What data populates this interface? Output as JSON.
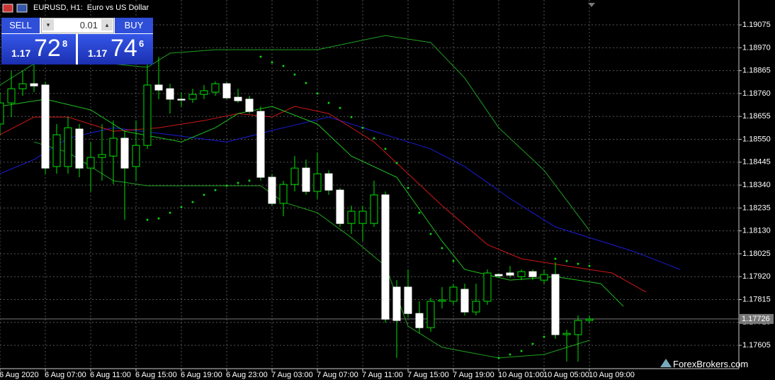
{
  "header": {
    "symbol_title": "EURUSD, H1:  Euro vs US Dollar"
  },
  "trade_panel": {
    "sell_label": "SELL",
    "buy_label": "BUY",
    "lot": "0.01",
    "sell_price": {
      "prefix": "1.17",
      "big": "72",
      "small": "8"
    },
    "buy_price": {
      "prefix": "1.17",
      "big": "74",
      "small": "6"
    }
  },
  "watermark": "ForexBrokers.com",
  "chart_data": {
    "type": "candlestick",
    "categories": [
      "6 Aug 2020",
      null,
      null,
      null,
      "6 Aug 07:00",
      null,
      null,
      null,
      "6 Aug 11:00",
      null,
      null,
      null,
      "6 Aug 15:00",
      null,
      null,
      null,
      "6 Aug 19:00",
      null,
      null,
      null,
      "6 Aug 23:00",
      null,
      null,
      null,
      "7 Aug 03:00",
      null,
      null,
      null,
      "7 Aug 07:00",
      null,
      null,
      null,
      "7 Aug 11:00",
      null,
      null,
      null,
      "7 Aug 15:00",
      null,
      null,
      null,
      "7 Aug 19:00",
      null,
      null,
      null,
      "10 Aug 01:00",
      null,
      null,
      null,
      "10 Aug 05:00",
      null,
      null,
      null,
      "10 Aug 09:00"
    ],
    "open": [
      1.1862,
      1.18717,
      1.18782,
      1.18805,
      1.18799,
      1.18425,
      1.18425,
      1.18597,
      1.18418,
      1.18467,
      1.18473,
      1.18555,
      1.18425,
      1.18522,
      1.18799,
      1.18782,
      1.18734,
      1.18734,
      1.18756,
      1.18766,
      1.18805,
      1.18743,
      1.18734,
      1.18678,
      1.18376,
      1.18256,
      1.18343,
      1.18418,
      1.18311,
      1.18392,
      1.18317,
      1.18164,
      1.18164,
      1.18164,
      1.18295,
      1.17872,
      1.17872,
      1.17751,
      1.17686,
      1.17807,
      1.17807,
      1.17862,
      1.17758,
      1.17807,
      1.1793,
      1.17937,
      1.1792,
      1.17943,
      1.17904,
      1.1793,
      1.17654,
      1.17654,
      1.17719
    ],
    "high": [
      1.18766,
      1.18864,
      1.18864,
      1.18896,
      1.18815,
      1.1862,
      1.18652,
      1.1862,
      1.18538,
      1.1862,
      1.18636,
      1.18587,
      1.18636,
      1.18912,
      1.18929,
      1.18805,
      1.18766,
      1.18782,
      1.18799,
      1.18815,
      1.18815,
      1.18782,
      1.1875,
      1.18701,
      1.18392,
      1.1836,
      1.18473,
      1.18457,
      1.1849,
      1.18408,
      1.18327,
      1.18246,
      1.18246,
      1.1836,
      1.18311,
      1.17904,
      1.17953,
      1.17807,
      1.17823,
      1.17872,
      1.17888,
      1.17888,
      1.17888,
      1.17953,
      1.17937,
      1.17969,
      1.17953,
      1.17953,
      1.17953,
      1.17986,
      1.17677,
      1.17742,
      1.17742
    ],
    "low": [
      1.18571,
      1.18652,
      1.1875,
      1.18766,
      1.18392,
      1.18392,
      1.18392,
      1.18376,
      1.18311,
      1.1836,
      1.18343,
      1.18181,
      1.1836,
      1.18506,
      1.18734,
      1.18668,
      1.18701,
      1.18717,
      1.18734,
      1.1875,
      1.18734,
      1.18717,
      1.18668,
      1.1836,
      1.18246,
      1.18197,
      1.18311,
      1.18295,
      1.18278,
      1.18295,
      1.18148,
      1.18116,
      1.18083,
      1.18148,
      1.17709,
      1.17547,
      1.17732,
      1.1766,
      1.17667,
      1.17774,
      1.17791,
      1.17742,
      1.17742,
      1.17791,
      1.17914,
      1.17914,
      1.17904,
      1.17904,
      1.17888,
      1.17634,
      1.17531,
      1.17531,
      1.17709
    ],
    "close": [
      1.18717,
      1.18782,
      1.18805,
      1.18795,
      1.18418,
      1.18571,
      1.18603,
      1.18418,
      1.18467,
      1.1848,
      1.18555,
      1.18418,
      1.18522,
      1.18799,
      1.18776,
      1.18734,
      1.1873,
      1.18756,
      1.18773,
      1.18805,
      1.1874,
      1.18727,
      1.18678,
      1.18376,
      1.18256,
      1.18343,
      1.18418,
      1.18311,
      1.18392,
      1.18317,
      1.18164,
      1.1822,
      1.1822,
      1.18295,
      1.17725,
      1.17719,
      1.17751,
      1.17686,
      1.17807,
      1.17813,
      1.17872,
      1.17758,
      1.17807,
      1.17937,
      1.17924,
      1.17927,
      1.17943,
      1.1792,
      1.1793,
      1.17654,
      1.1766,
      1.17719,
      1.17725
    ],
    "bull_fill": "#000000",
    "bear_fill": "#ffffff",
    "candle_color": "#00e000",
    "ylim": [
      1.17498,
      1.19189
    ],
    "yticks": [
      1.19075,
      {
        "value": 1.1897,
        "label": "1.18970"
      },
      1.18865,
      {
        "value": 1.1876,
        "label": "1.18760"
      },
      1.18655,
      {
        "value": 1.1855,
        "label": "1.18550"
      },
      1.18445,
      {
        "value": 1.1834,
        "label": "1.18340"
      },
      1.18235,
      {
        "value": 1.1813,
        "label": "1.18130"
      },
      1.18025,
      {
        "value": 1.1792,
        "label": "1.17920"
      },
      1.17815,
      {
        "value": 1.1771,
        "label": "1.17710"
      },
      1.17605
    ],
    "grid": true,
    "current_price": 1.17726,
    "lines": [
      {
        "color": "#1c1cd8",
        "x": [
          0,
          3,
          6,
          10,
          15,
          20,
          25,
          29,
          30,
          34,
          38,
          41,
          45,
          49,
          53,
          56,
          60
        ],
        "values": [
          1.18392,
          1.18457,
          1.18555,
          1.18603,
          1.18571,
          1.18538,
          1.18603,
          1.18652,
          1.18636,
          1.18571,
          1.18506,
          1.18425,
          1.18278,
          1.18148,
          1.18083,
          1.18034,
          1.17953
        ]
      },
      {
        "color": "#d01818",
        "x": [
          0,
          3,
          6,
          10,
          14,
          18,
          21,
          24,
          26,
          29,
          33,
          35,
          39,
          43,
          46,
          50,
          54,
          57
        ],
        "values": [
          1.18571,
          1.18652,
          1.18652,
          1.18587,
          1.18603,
          1.18636,
          1.18668,
          1.18652,
          1.18701,
          1.18668,
          1.18538,
          1.18441,
          1.18246,
          1.18067,
          1.18002,
          1.17969,
          1.17937,
          1.17849
        ]
      },
      {
        "color": "#20c020",
        "x": [
          0,
          4,
          8,
          11,
          16,
          19,
          21,
          24,
          28,
          31,
          35,
          39,
          41,
          45,
          49,
          53,
          55
        ],
        "values": [
          1.18701,
          1.18734,
          1.18685,
          1.18587,
          1.18538,
          1.18603,
          1.18668,
          1.18701,
          1.1862,
          1.18473,
          1.18376,
          1.18083,
          1.17953,
          1.17904,
          1.1792,
          1.17888,
          1.17784
        ]
      },
      {
        "color": "#20a020",
        "x": [
          0,
          3,
          6,
          10,
          13,
          15,
          19,
          24,
          28,
          31,
          34,
          38,
          41,
          44,
          48,
          52
        ],
        "values": [
          1.18799,
          1.18896,
          1.18929,
          1.18896,
          1.1888,
          1.18945,
          1.18961,
          1.18961,
          1.18961,
          1.18994,
          1.19026,
          1.18994,
          1.18831,
          1.18603,
          1.18408,
          1.18132
        ]
      },
      {
        "color": "#20a020",
        "x": [
          3,
          6,
          10,
          13,
          18,
          23,
          25,
          28,
          31,
          34,
          36,
          39,
          44,
          48,
          52
        ],
        "values": [
          1.18538,
          1.1849,
          1.1836,
          1.18337,
          1.18337,
          1.18337,
          1.18262,
          1.18213,
          1.18099,
          1.17969,
          1.17693,
          1.17596,
          1.17547,
          1.17563,
          1.17628
        ]
      }
    ],
    "sar": {
      "color": "#10d010",
      "x": [
        13,
        14,
        15,
        16,
        17,
        18,
        19,
        20,
        21,
        22,
        23,
        24,
        25,
        26,
        27,
        28,
        29,
        30,
        31,
        32,
        33,
        34,
        35,
        36,
        37,
        38,
        39,
        40,
        44,
        45,
        46,
        47,
        48,
        49,
        50,
        51,
        52
      ],
      "values": [
        1.18181,
        1.18187,
        1.18213,
        1.18239,
        1.18262,
        1.18295,
        1.18317,
        1.18337,
        1.1835,
        1.1836,
        1.18929,
        1.18903,
        1.18886,
        1.18847,
        1.18808,
        1.1876,
        1.18717,
        1.18694,
        1.18652,
        1.18603,
        1.18555,
        1.18506,
        1.18441,
        1.18327,
        1.18213,
        1.18116,
        1.18051,
        1.17992,
        1.17547,
        1.17563,
        1.17579,
        1.17612,
        1.17644,
        1.18002,
        1.17992,
        1.17979,
        1.17969
      ]
    }
  }
}
